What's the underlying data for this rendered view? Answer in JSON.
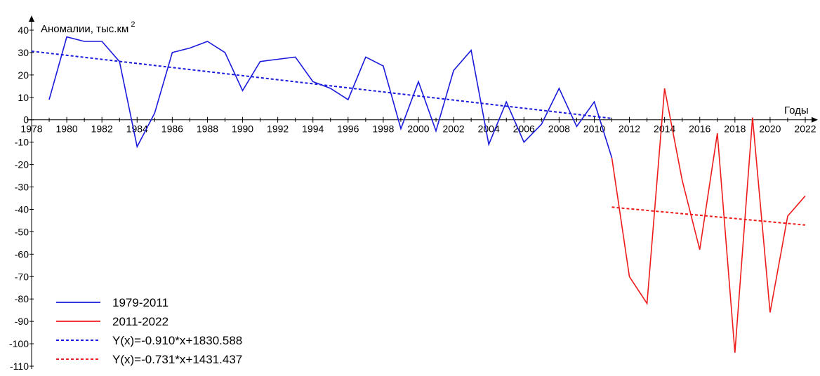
{
  "chart_data": {
    "type": "line",
    "ylabel": "Аномалии, тыс.км",
    "ylabel_superscript": "2",
    "xlabel": "Годы",
    "xlim": [
      1978,
      2022
    ],
    "ylim": [
      -110,
      40
    ],
    "x_ticks": [
      1978,
      1980,
      1982,
      1984,
      1986,
      1988,
      1990,
      1992,
      1994,
      1996,
      1998,
      2000,
      2002,
      2004,
      2006,
      2008,
      2010,
      2012,
      2014,
      2016,
      2018,
      2020,
      2022
    ],
    "y_ticks": [
      40,
      30,
      20,
      10,
      0,
      -10,
      -20,
      -30,
      -40,
      -50,
      -60,
      -70,
      -80,
      -90,
      -100,
      -110
    ],
    "grid": false,
    "legend_position": "bottom-left",
    "series": [
      {
        "name": "1979-2011",
        "color": "#1a1adc",
        "style": "solid",
        "x": [
          1979,
          1980,
          1981,
          1982,
          1983,
          1984,
          1985,
          1986,
          1987,
          1988,
          1989,
          1990,
          1991,
          1992,
          1993,
          1994,
          1995,
          1996,
          1997,
          1998,
          1999,
          2000,
          2001,
          2002,
          2003,
          2004,
          2005,
          2006,
          2007,
          2008,
          2009,
          2010,
          2011
        ],
        "y": [
          9,
          37,
          35,
          35,
          26,
          -12,
          3,
          30,
          32,
          35,
          30,
          13,
          26,
          27,
          28,
          17,
          14,
          9,
          28,
          24,
          -4,
          17,
          -5,
          22,
          31,
          -11,
          8,
          -10,
          -2,
          14,
          -3,
          8,
          -17
        ]
      },
      {
        "name": "2011-2022",
        "color": "#ee1b1b",
        "style": "solid",
        "x": [
          2011,
          2012,
          2013,
          2014,
          2015,
          2016,
          2017,
          2018,
          2019,
          2020,
          2021,
          2022
        ],
        "y": [
          -17,
          -70,
          -82,
          14,
          -27,
          -58,
          -6,
          -104,
          1,
          -86,
          -43,
          -34
        ]
      },
      {
        "name": "Y(x)=-0.910*x+1830.588",
        "color": "#1a1adc",
        "style": "dashed",
        "x": [
          1978,
          2011
        ],
        "y": [
          30.6,
          0.6
        ]
      },
      {
        "name": "Y(x)=-0.731*x+1431.437",
        "color": "#ee1b1b",
        "style": "dashed",
        "x": [
          2011,
          2022
        ],
        "y": [
          -39,
          -47
        ]
      }
    ]
  }
}
